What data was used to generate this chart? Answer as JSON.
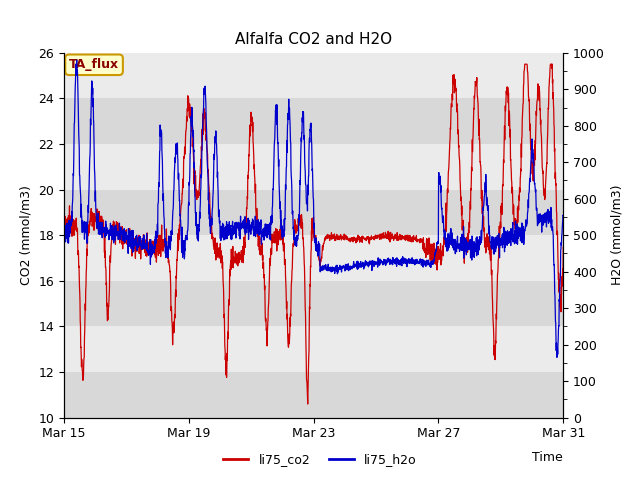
{
  "title": "Alfalfa CO2 and H2O",
  "xlabel": "Time",
  "ylabel_left": "CO2 (mmol/m3)",
  "ylabel_right": "H2O (mmol/m3)",
  "ylim_left": [
    10,
    26
  ],
  "ylim_right": [
    0,
    1000
  ],
  "yticks_left": [
    10,
    12,
    14,
    16,
    18,
    20,
    22,
    24,
    26
  ],
  "yticks_right": [
    0,
    100,
    200,
    300,
    400,
    500,
    600,
    700,
    800,
    900,
    1000
  ],
  "xtick_labels": [
    "Mar 15",
    "Mar 19",
    "Mar 23",
    "Mar 27",
    "Mar 31"
  ],
  "color_co2": "#cc0000",
  "color_h2o": "#0000cc",
  "legend_labels": [
    "li75_co2",
    "li75_h2o"
  ],
  "annotation_text": "TA_flux",
  "annotation_bg": "#ffffcc",
  "annotation_border": "#cc9900",
  "plot_bg_light": "#ebebeb",
  "plot_bg_dark": "#d8d8d8",
  "title_fontsize": 11,
  "axis_fontsize": 9,
  "tick_fontsize": 9,
  "legend_fontsize": 9,
  "seed": 12345,
  "n_points": 2000
}
